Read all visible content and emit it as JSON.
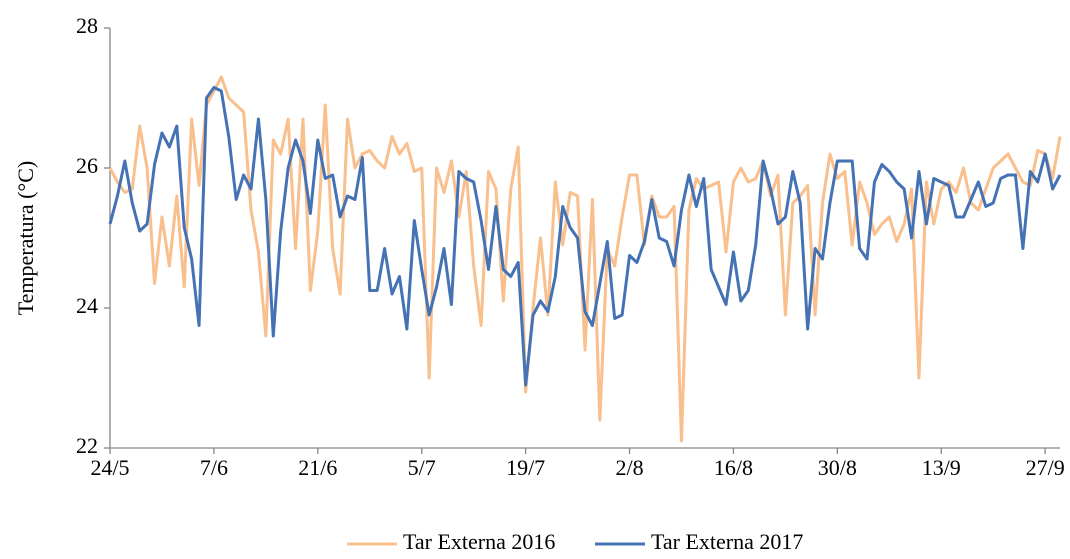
{
  "chart_data": {
    "type": "line",
    "y_label": "Temperatura (°C)",
    "categories": [
      "24/5",
      null,
      null,
      null,
      null,
      null,
      null,
      null,
      null,
      null,
      null,
      null,
      null,
      null,
      "7/6",
      null,
      null,
      null,
      null,
      null,
      null,
      null,
      null,
      null,
      null,
      null,
      null,
      null,
      "21/6",
      null,
      null,
      null,
      null,
      null,
      null,
      null,
      null,
      null,
      null,
      null,
      null,
      null,
      "5/7",
      null,
      null,
      null,
      null,
      null,
      null,
      null,
      null,
      null,
      null,
      null,
      null,
      null,
      "19/7",
      null,
      null,
      null,
      null,
      null,
      null,
      null,
      null,
      null,
      null,
      null,
      null,
      null,
      "2/8",
      null,
      null,
      null,
      null,
      null,
      null,
      null,
      null,
      null,
      null,
      null,
      null,
      null,
      "16/8",
      null,
      null,
      null,
      null,
      null,
      null,
      null,
      null,
      null,
      null,
      null,
      null,
      null,
      "30/8",
      null,
      null,
      null,
      null,
      null,
      null,
      null,
      null,
      null,
      null,
      null,
      null,
      null,
      "13/9",
      null,
      null,
      null,
      null,
      null,
      null,
      null,
      null,
      null,
      null,
      null,
      null,
      null,
      "27/9",
      null,
      null
    ],
    "series": [
      {
        "name": "Tar Externa 2016",
        "color": "#f9bf8c",
        "values": [
          26.0,
          25.8,
          25.65,
          25.7,
          26.6,
          26.0,
          24.35,
          25.3,
          24.6,
          25.6,
          24.3,
          26.7,
          25.75,
          26.9,
          27.1,
          27.3,
          27.0,
          26.9,
          26.8,
          25.4,
          24.8,
          23.6,
          26.4,
          26.2,
          26.7,
          24.85,
          26.7,
          24.25,
          25.1,
          26.9,
          24.85,
          24.2,
          26.7,
          26.0,
          26.2,
          26.25,
          26.1,
          26.0,
          26.45,
          26.2,
          26.35,
          25.95,
          26.0,
          23.0,
          26.0,
          25.65,
          26.1,
          25.3,
          25.95,
          24.6,
          23.75,
          25.95,
          25.7,
          24.1,
          25.7,
          26.3,
          22.8,
          24.0,
          25.0,
          23.9,
          25.8,
          24.9,
          25.65,
          25.6,
          23.4,
          25.55,
          22.4,
          24.85,
          24.6,
          25.3,
          25.9,
          25.9,
          24.9,
          25.6,
          25.3,
          25.3,
          25.45,
          22.1,
          25.4,
          25.85,
          25.7,
          25.75,
          25.8,
          24.8,
          25.8,
          26.0,
          25.8,
          25.85,
          26.1,
          25.6,
          25.9,
          23.9,
          25.5,
          25.6,
          25.75,
          23.9,
          25.5,
          26.2,
          25.85,
          25.95,
          24.9,
          25.8,
          25.5,
          25.05,
          25.2,
          25.3,
          24.95,
          25.2,
          25.7,
          23.0,
          25.8,
          25.2,
          25.7,
          25.8,
          25.65,
          26.0,
          25.5,
          25.4,
          25.7,
          26.0,
          26.1,
          26.2,
          26.0,
          25.8,
          25.75,
          26.25,
          26.2,
          25.85,
          26.45
        ]
      },
      {
        "name": "Tar Externa 2017",
        "color": "#4472b4",
        "values": [
          25.2,
          25.6,
          26.1,
          25.5,
          25.1,
          25.2,
          26.05,
          26.5,
          26.3,
          26.6,
          25.15,
          24.7,
          23.75,
          27.0,
          27.15,
          27.1,
          26.45,
          25.55,
          25.9,
          25.7,
          26.7,
          25.55,
          23.6,
          25.1,
          26.0,
          26.4,
          26.1,
          25.35,
          26.4,
          25.85,
          25.9,
          25.3,
          25.6,
          25.55,
          26.15,
          24.25,
          24.25,
          24.85,
          24.2,
          24.45,
          23.7,
          25.25,
          24.55,
          23.9,
          24.3,
          24.85,
          24.05,
          25.95,
          25.85,
          25.8,
          25.25,
          24.55,
          25.45,
          24.55,
          24.45,
          24.65,
          22.9,
          23.9,
          24.1,
          23.95,
          24.45,
          25.45,
          25.15,
          25.0,
          23.95,
          23.75,
          24.35,
          24.95,
          23.85,
          23.9,
          24.75,
          24.65,
          24.95,
          25.55,
          25.0,
          24.95,
          24.6,
          25.4,
          25.9,
          25.45,
          25.85,
          24.55,
          24.3,
          24.05,
          24.8,
          24.1,
          24.25,
          24.9,
          26.1,
          25.7,
          25.2,
          25.3,
          25.95,
          25.5,
          23.7,
          24.85,
          24.7,
          25.5,
          26.1,
          26.1,
          26.1,
          24.85,
          24.7,
          25.8,
          26.05,
          25.95,
          25.8,
          25.7,
          25.0,
          25.95,
          25.2,
          25.85,
          25.8,
          25.75,
          25.3,
          25.3,
          25.55,
          25.8,
          25.45,
          25.5,
          25.85,
          25.9,
          25.9,
          24.85,
          25.95,
          25.8,
          26.2,
          25.7,
          25.9
        ]
      }
    ],
    "ylim": [
      22,
      28
    ],
    "yticks": [
      22,
      24,
      26,
      28
    ],
    "grid": false,
    "legend": "bottom"
  }
}
